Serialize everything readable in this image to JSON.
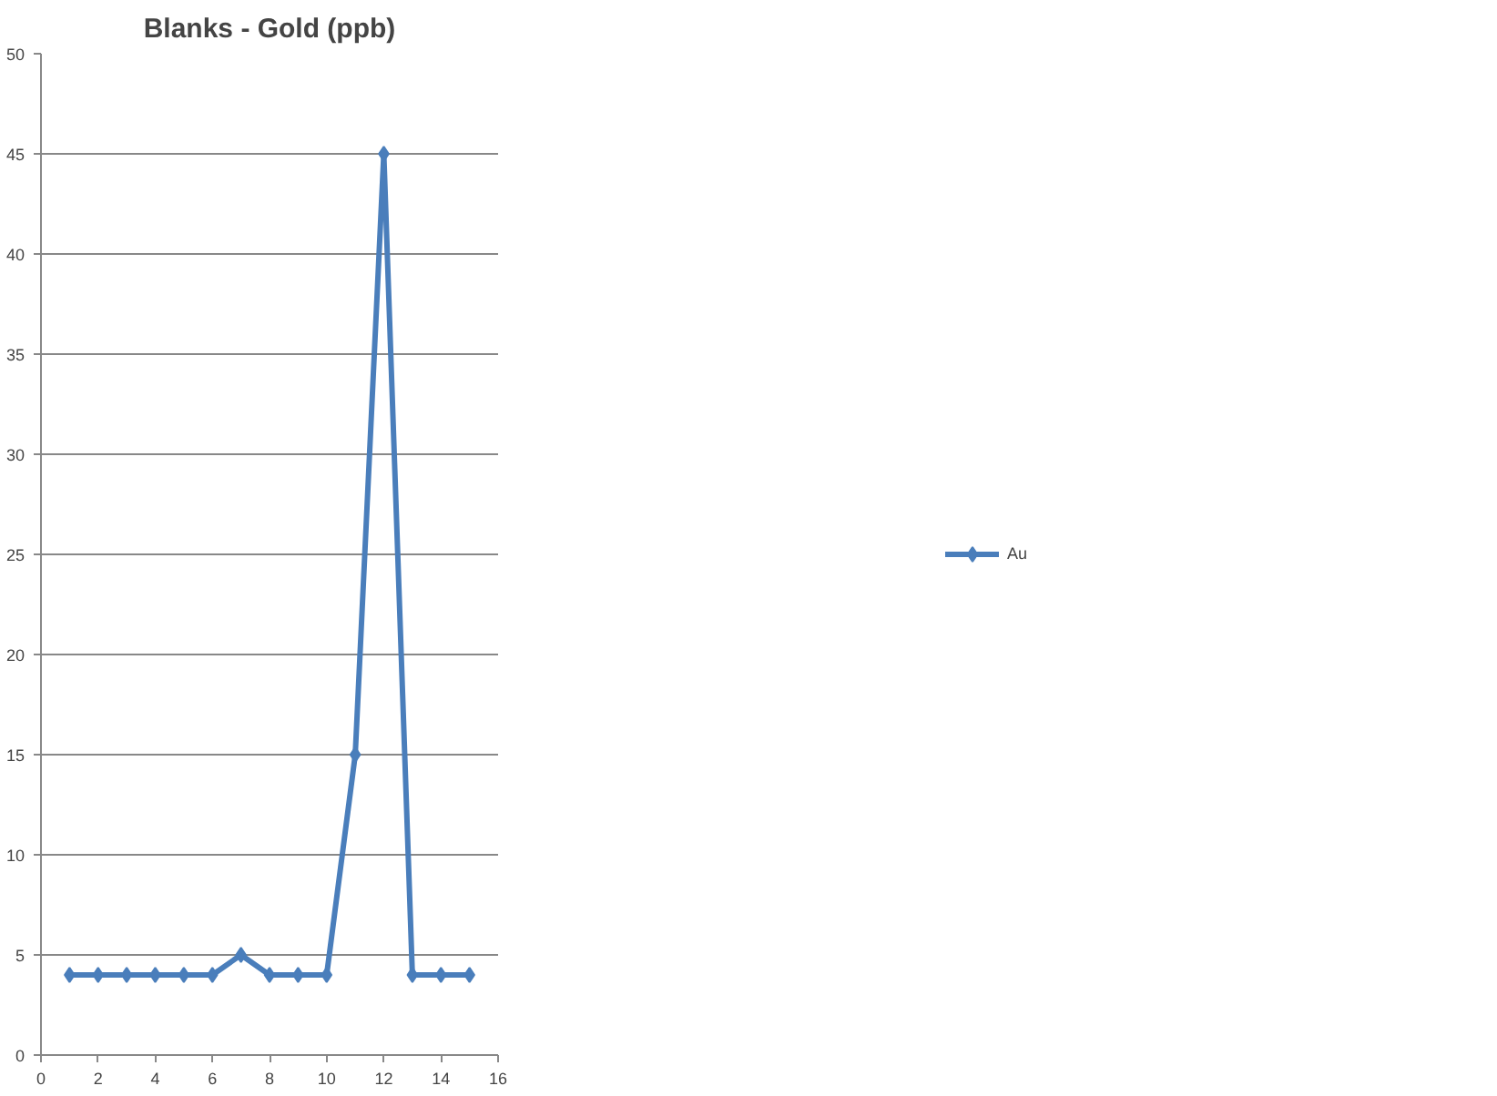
{
  "chart_data": {
    "type": "line",
    "title": "Blanks - Gold (ppb)",
    "x": [
      1,
      2,
      3,
      4,
      5,
      6,
      7,
      8,
      9,
      10,
      11,
      12,
      13,
      14,
      15
    ],
    "series": [
      {
        "name": "Au",
        "color": "#4a7ebb",
        "values": [
          4,
          4,
          4,
          4,
          4,
          4,
          5,
          4,
          4,
          4,
          15,
          45,
          4,
          4,
          4
        ]
      }
    ],
    "xlim": [
      0,
      16
    ],
    "xticks": [
      0,
      2,
      4,
      6,
      8,
      10,
      12,
      14,
      16
    ],
    "ylim": [
      0,
      50
    ],
    "yticks": [
      0,
      5,
      10,
      15,
      20,
      25,
      30,
      35,
      40,
      45,
      50
    ],
    "grid": "y",
    "legend": "right",
    "marker": "diamond",
    "line_style": "solid"
  }
}
